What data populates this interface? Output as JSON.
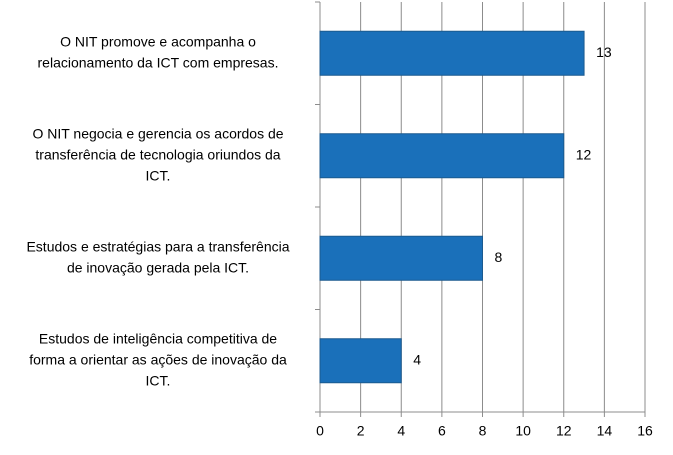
{
  "chart_data": {
    "type": "bar",
    "orientation": "horizontal",
    "categories": [
      [
        "O NIT promove e acompanha o",
        "relacionamento da ICT com empresas."
      ],
      [
        "O NIT negocia e gerencia os acordos de",
        "transferência de tecnologia oriundos da",
        "ICT."
      ],
      [
        "Estudos e estratégias para a transferência",
        "de inovação gerada pela ICT."
      ],
      [
        "Estudos de inteligência competitiva de",
        "forma a orientar as ações de inovação da",
        "ICT."
      ]
    ],
    "values": [
      13,
      12,
      8,
      4
    ],
    "color": "#1a70ba",
    "xlim": [
      0,
      16
    ],
    "xticks": [
      0,
      2,
      4,
      6,
      8,
      10,
      12,
      14,
      16
    ],
    "grid": true
  }
}
